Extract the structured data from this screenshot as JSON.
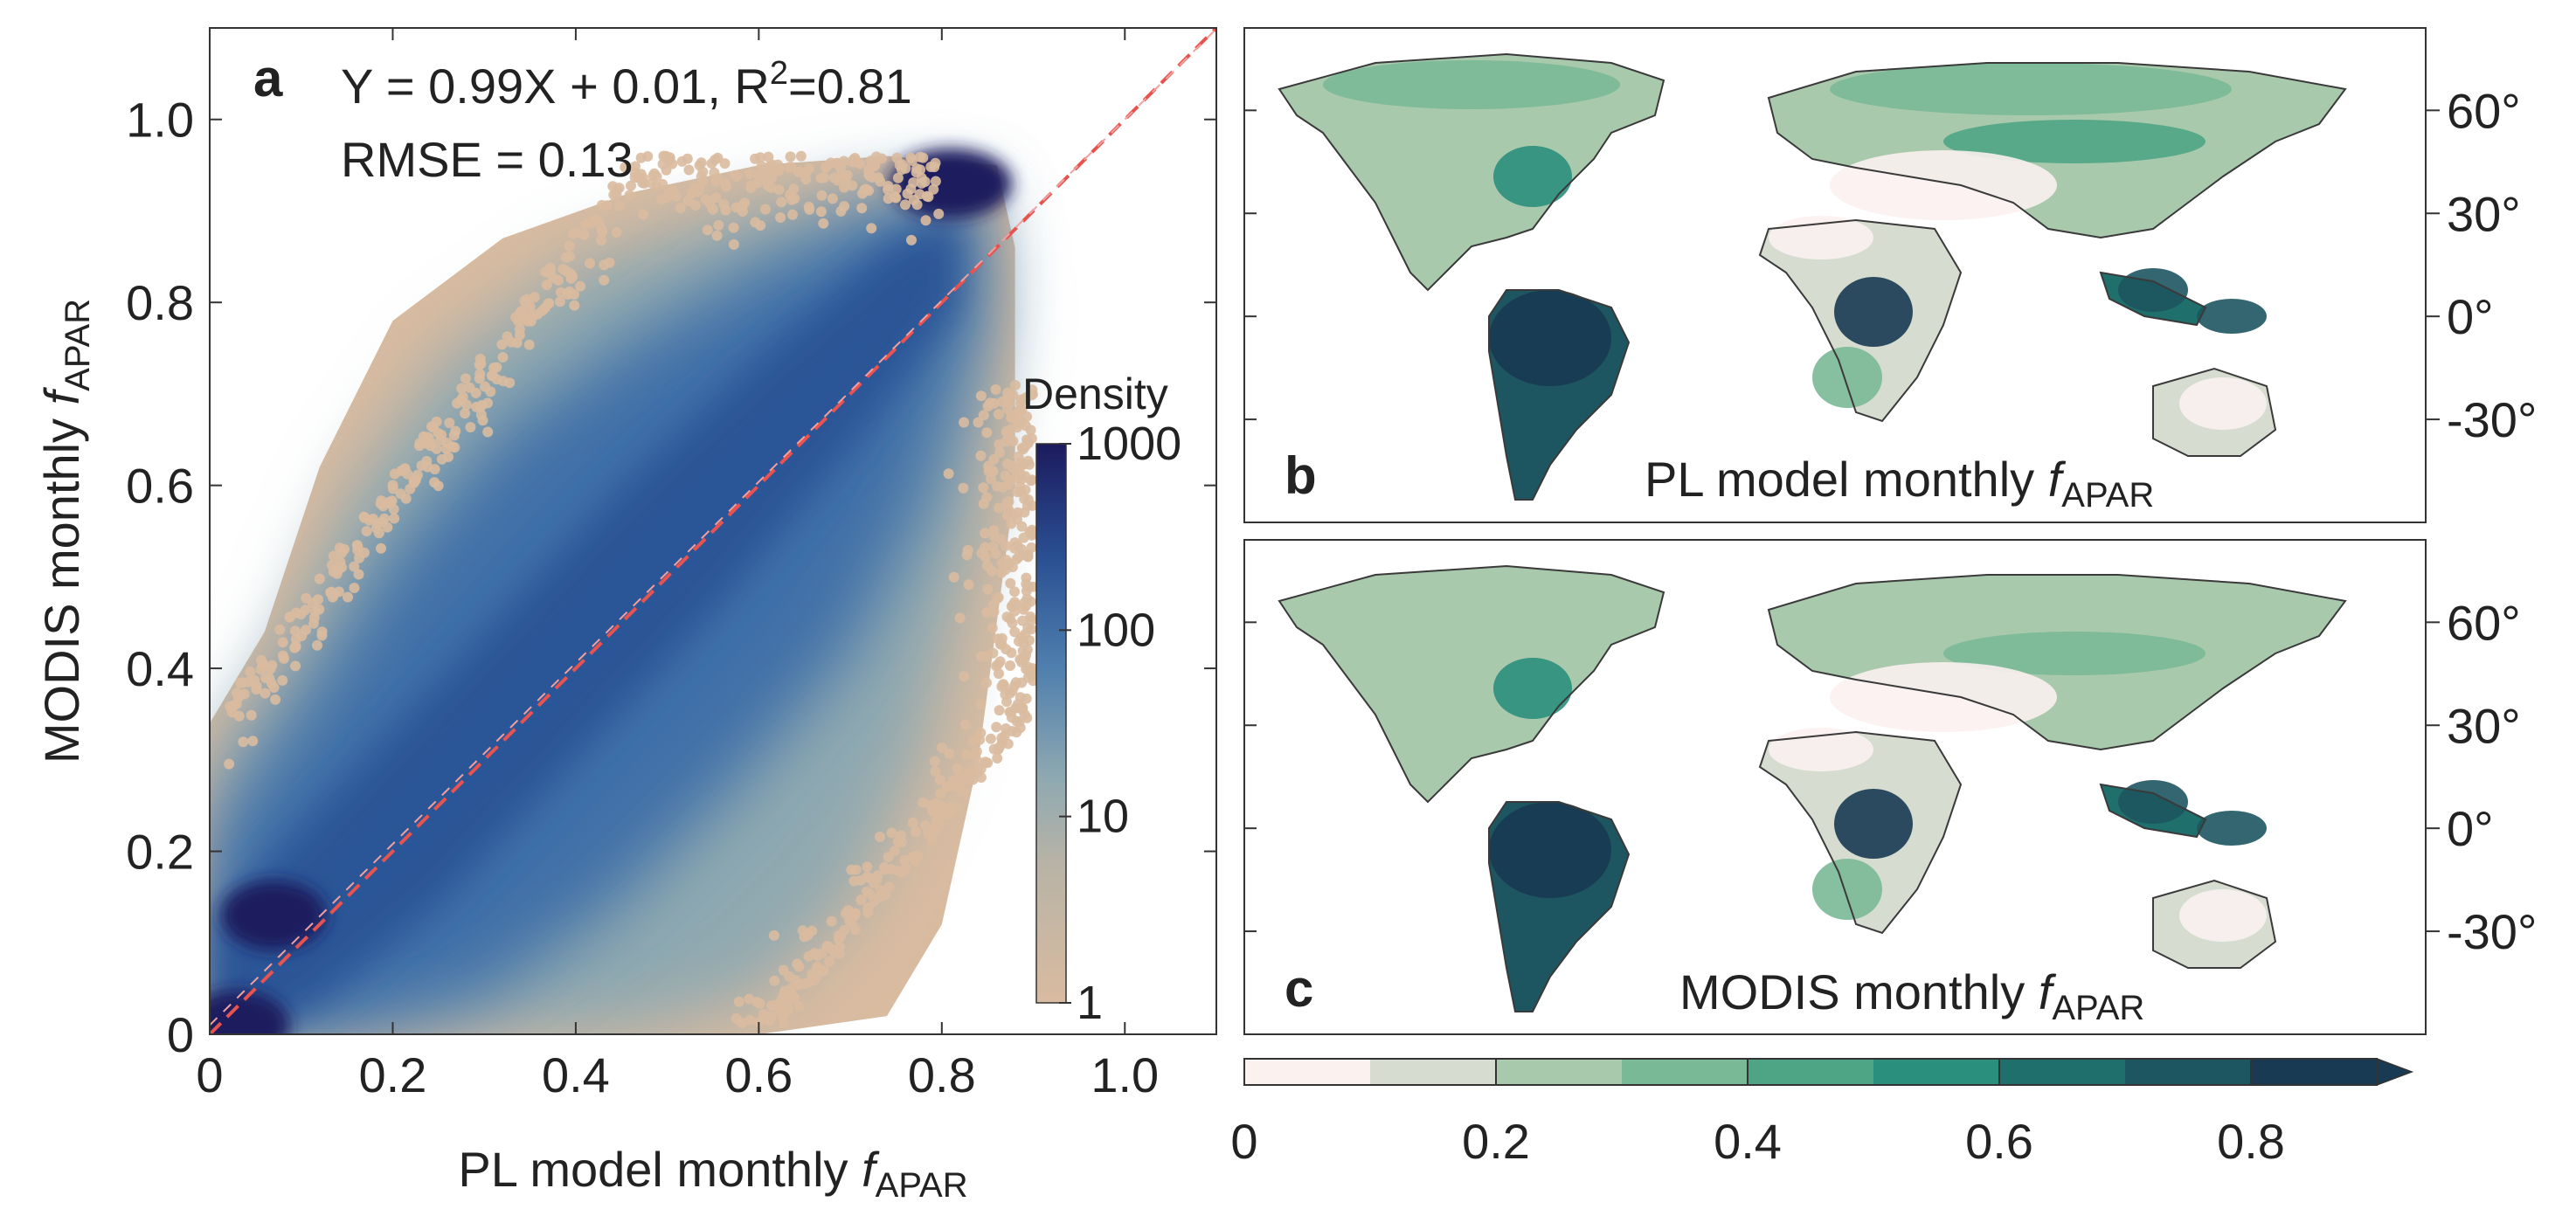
{
  "chart_data": [
    {
      "panel": "a",
      "type": "scatter",
      "xlabel": "PL model monthly",
      "ylabel": "MODIS monthly",
      "label_symbol": "f",
      "label_subscript": "APAR",
      "xlim": [
        0,
        1.1
      ],
      "ylim": [
        0,
        1.1
      ],
      "x_ticks": [
        0,
        0.2,
        0.4,
        0.6,
        0.8,
        1.0
      ],
      "x_tick_labels": [
        "0",
        "0.2",
        "0.4",
        "0.6",
        "0.8",
        "1.0"
      ],
      "y_ticks": [
        0,
        0.2,
        0.4,
        0.6,
        0.8,
        1.0
      ],
      "y_tick_labels": [
        "0",
        "0.2",
        "0.4",
        "0.6",
        "0.8",
        "1.0"
      ],
      "annotation_equation": "Y = 0.99X + 0.01, R",
      "annotation_r2_sup": "2",
      "annotation_r2_value": "=0.81",
      "annotation_rmse": "RMSE = 0.13",
      "reference_line": {
        "x": [
          0,
          1.1
        ],
        "y": [
          0,
          1.1
        ],
        "style": "dashed",
        "color": "#e8534f"
      },
      "fit_line": {
        "slope": 0.99,
        "intercept": 0.01
      },
      "colorbar": {
        "title": "Density",
        "scale": "log",
        "ticks": [
          1,
          10,
          100,
          1000
        ],
        "tick_labels": [
          "1",
          "10",
          "100",
          "1000"
        ],
        "colors": [
          "#d9bba0",
          "#9cb0b0",
          "#4f7fae",
          "#2a4f92",
          "#1c1b5e"
        ]
      },
      "point_color_low_density": "#d9bba0",
      "point_color_high_density": "#1c1b5e",
      "hotspots": [
        {
          "x": 0.81,
          "y": 0.93
        },
        {
          "x": 0.07,
          "y": 0.13
        },
        {
          "x": 0.03,
          "y": 0.01
        }
      ]
    },
    {
      "panel": "b",
      "type": "heatmap",
      "title_prefix": "PL model monthly",
      "title_symbol": "f",
      "title_subscript": "APAR",
      "lat_ticks": [
        "60°",
        "30°",
        "0°",
        "-30°"
      ]
    },
    {
      "panel": "c",
      "type": "heatmap",
      "title_prefix": "MODIS monthly",
      "title_symbol": "f",
      "title_subscript": "APAR",
      "lat_ticks": [
        "60°",
        "30°",
        "0°",
        "-30°"
      ]
    }
  ],
  "shared_colorbar": {
    "boundaries": [
      0,
      0.1,
      0.2,
      0.3,
      0.4,
      0.5,
      0.6,
      0.7,
      0.8,
      0.9
    ],
    "tick_values": [
      0,
      0.2,
      0.4,
      0.6,
      0.8
    ],
    "tick_labels": [
      "0",
      "0.2",
      "0.4",
      "0.6",
      "0.8"
    ],
    "colors": [
      "#fbf1ef",
      "#d6ddd0",
      "#a9c9ad",
      "#7ab996",
      "#4ea585",
      "#2a8f7d",
      "#1f6f6c",
      "#1d5560",
      "#183a52"
    ],
    "extend": "max"
  }
}
